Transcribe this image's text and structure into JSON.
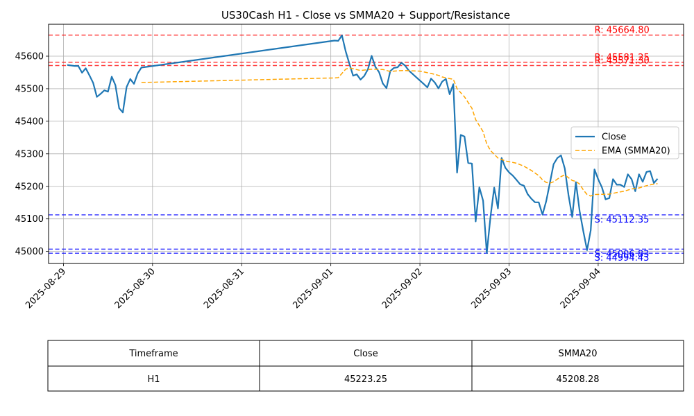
{
  "chart_data": {
    "type": "line",
    "title": "US30Cash H1 - Close vs SMMA20 + Support/Resistance",
    "ylim": [
      44963,
      45698
    ],
    "xlim": [
      "2025-08-28T20:00",
      "2025-09-04T23:00"
    ],
    "grid": true,
    "legend_position": "center-right",
    "x_ticks": [
      "2025-08-29",
      "2025-08-30",
      "2025-08-31",
      "2025-09-01",
      "2025-09-02",
      "2025-09-03",
      "2025-09-04"
    ],
    "y_ticks": [
      45000,
      45100,
      45200,
      45300,
      45400,
      45500,
      45600
    ],
    "series": [
      {
        "name": "Close",
        "color": "#1f77b4",
        "style": "solid",
        "points": [
          [
            "2025-08-29T01:00",
            45573
          ],
          [
            "2025-08-29T03:00",
            45570
          ],
          [
            "2025-08-29T04:00",
            45570
          ],
          [
            "2025-08-29T05:00",
            45549
          ],
          [
            "2025-08-29T06:00",
            45563
          ],
          [
            "2025-08-29T07:00",
            45541
          ],
          [
            "2025-08-29T08:00",
            45518
          ],
          [
            "2025-08-29T09:00",
            45475
          ],
          [
            "2025-08-29T10:00",
            45484
          ],
          [
            "2025-08-29T11:00",
            45495
          ],
          [
            "2025-08-29T12:00",
            45491
          ],
          [
            "2025-08-29T13:00",
            45537
          ],
          [
            "2025-08-29T14:00",
            45511
          ],
          [
            "2025-08-29T15:00",
            45440
          ],
          [
            "2025-08-29T16:00",
            45427
          ],
          [
            "2025-08-29T17:00",
            45505
          ],
          [
            "2025-08-29T18:00",
            45530
          ],
          [
            "2025-08-29T19:00",
            45515
          ],
          [
            "2025-08-29T20:00",
            45547
          ],
          [
            "2025-08-29T21:00",
            45565
          ],
          [
            "2025-08-29T23:00",
            45568
          ],
          [
            "2025-09-01T01:00",
            45648
          ],
          [
            "2025-09-01T02:00",
            45647
          ],
          [
            "2025-09-01T03:00",
            45664
          ],
          [
            "2025-09-01T04:00",
            45615
          ],
          [
            "2025-09-01T05:00",
            45577
          ],
          [
            "2025-09-01T06:00",
            45540
          ],
          [
            "2025-09-01T07:00",
            45544
          ],
          [
            "2025-09-01T08:00",
            45528
          ],
          [
            "2025-09-01T09:00",
            45539
          ],
          [
            "2025-09-01T10:00",
            45560
          ],
          [
            "2025-09-01T11:00",
            45601
          ],
          [
            "2025-09-01T12:00",
            45567
          ],
          [
            "2025-09-01T13:00",
            45551
          ],
          [
            "2025-09-01T14:00",
            45516
          ],
          [
            "2025-09-01T15:00",
            45502
          ],
          [
            "2025-09-01T16:00",
            45554
          ],
          [
            "2025-09-01T17:00",
            45564
          ],
          [
            "2025-09-01T18:00",
            45566
          ],
          [
            "2025-09-01T19:00",
            45580
          ],
          [
            "2025-09-01T20:00",
            45571
          ],
          [
            "2025-09-01T21:00",
            45556
          ],
          [
            "2025-09-02T00:00",
            45525
          ],
          [
            "2025-09-02T01:00",
            45515
          ],
          [
            "2025-09-02T02:00",
            45504
          ],
          [
            "2025-09-02T03:00",
            45531
          ],
          [
            "2025-09-02T04:00",
            45519
          ],
          [
            "2025-09-02T05:00",
            45501
          ],
          [
            "2025-09-02T06:00",
            45522
          ],
          [
            "2025-09-02T07:00",
            45530
          ],
          [
            "2025-09-02T08:00",
            45483
          ],
          [
            "2025-09-02T09:00",
            45514
          ],
          [
            "2025-09-02T10:00",
            45242
          ],
          [
            "2025-09-02T11:00",
            45358
          ],
          [
            "2025-09-02T12:00",
            45353
          ],
          [
            "2025-09-02T13:00",
            45272
          ],
          [
            "2025-09-02T14:00",
            45270
          ],
          [
            "2025-09-02T15:00",
            45092
          ],
          [
            "2025-09-02T16:00",
            45197
          ],
          [
            "2025-09-02T17:00",
            45156
          ],
          [
            "2025-09-02T18:00",
            44995
          ],
          [
            "2025-09-02T19:00",
            45107
          ],
          [
            "2025-09-02T20:00",
            45196
          ],
          [
            "2025-09-02T21:00",
            45132
          ],
          [
            "2025-09-02T22:00",
            45287
          ],
          [
            "2025-09-02T23:00",
            45257
          ],
          [
            "2025-09-03T00:00",
            45243
          ],
          [
            "2025-09-03T01:00",
            45233
          ],
          [
            "2025-09-03T02:00",
            45220
          ],
          [
            "2025-09-03T03:00",
            45206
          ],
          [
            "2025-09-03T04:00",
            45202
          ],
          [
            "2025-09-03T05:00",
            45176
          ],
          [
            "2025-09-03T06:00",
            45162
          ],
          [
            "2025-09-03T07:00",
            45151
          ],
          [
            "2025-09-03T08:00",
            45151
          ],
          [
            "2025-09-03T09:00",
            45113
          ],
          [
            "2025-09-03T10:00",
            45154
          ],
          [
            "2025-09-03T11:00",
            45211
          ],
          [
            "2025-09-03T12:00",
            45268
          ],
          [
            "2025-09-03T13:00",
            45287
          ],
          [
            "2025-09-03T14:00",
            45295
          ],
          [
            "2025-09-03T15:00",
            45255
          ],
          [
            "2025-09-03T16:00",
            45174
          ],
          [
            "2025-09-03T17:00",
            45106
          ],
          [
            "2025-09-03T18:00",
            45213
          ],
          [
            "2025-09-03T19:00",
            45124
          ],
          [
            "2025-09-03T20:00",
            45062
          ],
          [
            "2025-09-03T21:00",
            45004
          ],
          [
            "2025-09-03T22:00",
            45065
          ],
          [
            "2025-09-03T23:00",
            45252
          ],
          [
            "2025-09-04T00:00",
            45222
          ],
          [
            "2025-09-04T01:00",
            45197
          ],
          [
            "2025-09-04T02:00",
            45160
          ],
          [
            "2025-09-04T03:00",
            45164
          ],
          [
            "2025-09-04T04:00",
            45222
          ],
          [
            "2025-09-04T05:00",
            45205
          ],
          [
            "2025-09-04T06:00",
            45205
          ],
          [
            "2025-09-04T07:00",
            45198
          ],
          [
            "2025-09-04T08:00",
            45237
          ],
          [
            "2025-09-04T09:00",
            45222
          ],
          [
            "2025-09-04T10:00",
            45185
          ],
          [
            "2025-09-04T11:00",
            45237
          ],
          [
            "2025-09-04T12:00",
            45214
          ],
          [
            "2025-09-04T13:00",
            45244
          ],
          [
            "2025-09-04T14:00",
            45247
          ],
          [
            "2025-09-04T15:00",
            45210
          ],
          [
            "2025-09-04T16:00",
            45223.25
          ]
        ]
      },
      {
        "name": "EMA (SMMA20)",
        "color": "#ffa500",
        "style": "dashed",
        "points": [
          [
            "2025-08-29T21:00",
            45519
          ],
          [
            "2025-09-01T01:00",
            45533
          ],
          [
            "2025-09-01T02:00",
            45534
          ],
          [
            "2025-09-01T03:00",
            45547
          ],
          [
            "2025-09-01T04:00",
            45560
          ],
          [
            "2025-09-01T05:00",
            45564
          ],
          [
            "2025-09-01T08:00",
            45556
          ],
          [
            "2025-09-01T11:00",
            45560
          ],
          [
            "2025-09-01T14:00",
            45559
          ],
          [
            "2025-09-01T16:00",
            45553
          ],
          [
            "2025-09-01T18:00",
            45555
          ],
          [
            "2025-09-01T20:00",
            45556
          ],
          [
            "2025-09-02T00:00",
            45554
          ],
          [
            "2025-09-02T03:00",
            45547
          ],
          [
            "2025-09-02T05:00",
            45541
          ],
          [
            "2025-09-02T06:00",
            45536
          ],
          [
            "2025-09-02T08:00",
            45531
          ],
          [
            "2025-09-02T09:00",
            45529
          ],
          [
            "2025-09-02T10:00",
            45500
          ],
          [
            "2025-09-02T12:00",
            45475
          ],
          [
            "2025-09-02T14:00",
            45440
          ],
          [
            "2025-09-02T15:00",
            45405
          ],
          [
            "2025-09-02T17:00",
            45368
          ],
          [
            "2025-09-02T18:00",
            45330
          ],
          [
            "2025-09-02T19:00",
            45310
          ],
          [
            "2025-09-02T21:00",
            45287
          ],
          [
            "2025-09-02T23:00",
            45278
          ],
          [
            "2025-09-03T02:00",
            45271
          ],
          [
            "2025-09-03T04:00",
            45262
          ],
          [
            "2025-09-03T06:00",
            45249
          ],
          [
            "2025-09-03T08:00",
            45233
          ],
          [
            "2025-09-03T09:00",
            45220
          ],
          [
            "2025-09-03T10:00",
            45212
          ],
          [
            "2025-09-03T11:00",
            45210
          ],
          [
            "2025-09-03T12:00",
            45214
          ],
          [
            "2025-09-03T14:00",
            45230
          ],
          [
            "2025-09-03T15:00",
            45235
          ],
          [
            "2025-09-03T17:00",
            45218
          ],
          [
            "2025-09-03T18:00",
            45215
          ],
          [
            "2025-09-03T19:00",
            45207
          ],
          [
            "2025-09-03T20:00",
            45189
          ],
          [
            "2025-09-03T21:00",
            45175
          ],
          [
            "2025-09-03T22:00",
            45170
          ],
          [
            "2025-09-03T23:00",
            45175
          ],
          [
            "2025-09-04T03:00",
            45176
          ],
          [
            "2025-09-04T05:00",
            45181
          ],
          [
            "2025-09-04T07:00",
            45185
          ],
          [
            "2025-09-04T09:00",
            45192
          ],
          [
            "2025-09-04T11:00",
            45195
          ],
          [
            "2025-09-04T13:00",
            45202
          ],
          [
            "2025-09-04T15:00",
            45207
          ],
          [
            "2025-09-04T16:00",
            45208.28
          ]
        ]
      }
    ],
    "levels": [
      {
        "kind": "resistance",
        "value": 45664.8,
        "label": "R: 45664.80",
        "color": "#ff0000"
      },
      {
        "kind": "resistance",
        "value": 45581.25,
        "label": "R: 45581.25",
        "color": "#ff0000"
      },
      {
        "kind": "resistance",
        "value": 45571.3,
        "label": "R: 45571.30",
        "color": "#ff0000"
      },
      {
        "kind": "support",
        "value": 45112.35,
        "label": "S: 45112.35",
        "color": "#0000ff"
      },
      {
        "kind": "support",
        "value": 45006.83,
        "label": "S: 45006.83",
        "color": "#0000ff"
      },
      {
        "kind": "support",
        "value": 44994.43,
        "label": "S: 44994.43",
        "color": "#0000ff"
      }
    ]
  },
  "table": {
    "headers": [
      "Timeframe",
      "Close",
      "SMMA20"
    ],
    "rows": [
      [
        "H1",
        "45223.25",
        "45208.28"
      ]
    ]
  }
}
